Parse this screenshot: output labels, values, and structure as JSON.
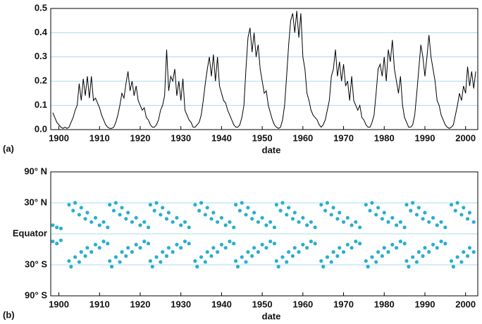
{
  "chart_data": [
    {
      "type": "line",
      "label": "(a)",
      "xlabel": "date",
      "color": "#000000",
      "grid": true,
      "xlim": [
        1898,
        2003
      ],
      "xticks": [
        1900,
        1910,
        1920,
        1930,
        1940,
        1950,
        1960,
        1970,
        1980,
        1990,
        2000
      ],
      "ylim": [
        0,
        0.5
      ],
      "yticks": [
        {
          "value": 0,
          "label": "0.0"
        },
        0.1,
        0.2,
        0.3,
        0.4,
        0.5
      ],
      "x": [
        1898.5,
        1899,
        1899.5,
        1900,
        1900.5,
        1901,
        1901.5,
        1902,
        1902.5,
        1903,
        1903.5,
        1904,
        1904.5,
        1905,
        1905.5,
        1906,
        1906.5,
        1907,
        1907.5,
        1908,
        1908.5,
        1909,
        1909.5,
        1910,
        1910.5,
        1911,
        1911.5,
        1912,
        1912.5,
        1913,
        1913.5,
        1914,
        1914.5,
        1915,
        1915.5,
        1916,
        1916.5,
        1917,
        1917.5,
        1918,
        1918.5,
        1919,
        1919.5,
        1920,
        1920.5,
        1921,
        1921.5,
        1922,
        1922.5,
        1923,
        1923.5,
        1924,
        1924.5,
        1925,
        1925.5,
        1926,
        1926.5,
        1927,
        1927.5,
        1928,
        1928.5,
        1929,
        1929.5,
        1930,
        1930.5,
        1931,
        1931.5,
        1932,
        1932.5,
        1933,
        1933.5,
        1934,
        1934.5,
        1935,
        1935.5,
        1936,
        1936.5,
        1937,
        1937.5,
        1938,
        1938.5,
        1939,
        1939.5,
        1940,
        1940.5,
        1941,
        1941.5,
        1942,
        1942.5,
        1943,
        1943.5,
        1944,
        1944.5,
        1945,
        1945.5,
        1946,
        1946.5,
        1947,
        1947.5,
        1948,
        1948.5,
        1949,
        1949.5,
        1950,
        1950.5,
        1951,
        1951.5,
        1952,
        1952.5,
        1953,
        1953.5,
        1954,
        1954.5,
        1955,
        1955.5,
        1956,
        1956.5,
        1957,
        1957.5,
        1958,
        1958.5,
        1959,
        1959.5,
        1960,
        1960.5,
        1961,
        1961.5,
        1962,
        1962.5,
        1963,
        1963.5,
        1964,
        1964.5,
        1965,
        1965.5,
        1966,
        1966.5,
        1967,
        1967.5,
        1968,
        1968.5,
        1969,
        1969.5,
        1970,
        1970.5,
        1971,
        1971.5,
        1972,
        1972.5,
        1973,
        1973.5,
        1974,
        1974.5,
        1975,
        1975.5,
        1976,
        1976.5,
        1977,
        1977.5,
        1978,
        1978.5,
        1979,
        1979.5,
        1980,
        1980.5,
        1981,
        1981.5,
        1982,
        1982.5,
        1983,
        1983.5,
        1984,
        1984.5,
        1985,
        1985.5,
        1986,
        1986.5,
        1987,
        1987.5,
        1988,
        1988.5,
        1989,
        1989.5,
        1990,
        1990.5,
        1991,
        1991.5,
        1992,
        1992.5,
        1993,
        1993.5,
        1994,
        1994.5,
        1995,
        1995.5,
        1996,
        1996.5,
        1997,
        1997.5,
        1998,
        1998.5,
        1999,
        1999.5,
        2000,
        2000.5,
        2001,
        2001.5,
        2002,
        2002.5
      ],
      "values": [
        0.07,
        0.05,
        0.03,
        0.02,
        0.01,
        0.005,
        0.01,
        0.005,
        0.01,
        0.03,
        0.05,
        0.08,
        0.1,
        0.19,
        0.12,
        0.21,
        0.14,
        0.22,
        0.13,
        0.22,
        0.12,
        0.13,
        0.11,
        0.09,
        0.06,
        0.04,
        0.02,
        0.01,
        0.005,
        0.005,
        0.01,
        0.03,
        0.06,
        0.1,
        0.15,
        0.13,
        0.19,
        0.24,
        0.16,
        0.2,
        0.14,
        0.18,
        0.12,
        0.1,
        0.08,
        0.09,
        0.05,
        0.04,
        0.02,
        0.01,
        0.01,
        0.02,
        0.04,
        0.08,
        0.1,
        0.14,
        0.33,
        0.16,
        0.22,
        0.2,
        0.25,
        0.14,
        0.2,
        0.12,
        0.21,
        0.08,
        0.06,
        0.04,
        0.03,
        0.01,
        0.01,
        0.02,
        0.03,
        0.06,
        0.12,
        0.19,
        0.25,
        0.3,
        0.22,
        0.31,
        0.2,
        0.3,
        0.18,
        0.15,
        0.12,
        0.11,
        0.08,
        0.06,
        0.04,
        0.02,
        0.01,
        0.01,
        0.02,
        0.05,
        0.1,
        0.25,
        0.38,
        0.42,
        0.32,
        0.4,
        0.3,
        0.35,
        0.25,
        0.2,
        0.15,
        0.16,
        0.1,
        0.07,
        0.04,
        0.02,
        0.01,
        0.005,
        0.01,
        0.04,
        0.1,
        0.22,
        0.35,
        0.45,
        0.48,
        0.4,
        0.49,
        0.38,
        0.48,
        0.3,
        0.25,
        0.15,
        0.12,
        0.08,
        0.06,
        0.05,
        0.04,
        0.02,
        0.01,
        0.02,
        0.04,
        0.08,
        0.12,
        0.22,
        0.25,
        0.33,
        0.22,
        0.28,
        0.2,
        0.27,
        0.18,
        0.2,
        0.12,
        0.22,
        0.12,
        0.1,
        0.08,
        0.1,
        0.05,
        0.04,
        0.02,
        0.01,
        0.01,
        0.03,
        0.06,
        0.15,
        0.25,
        0.27,
        0.22,
        0.3,
        0.2,
        0.33,
        0.28,
        0.37,
        0.25,
        0.2,
        0.15,
        0.22,
        0.1,
        0.05,
        0.03,
        0.01,
        0.01,
        0.02,
        0.06,
        0.15,
        0.25,
        0.35,
        0.3,
        0.22,
        0.3,
        0.39,
        0.3,
        0.25,
        0.2,
        0.12,
        0.1,
        0.06,
        0.04,
        0.02,
        0.01,
        0.005,
        0.01,
        0.02,
        0.06,
        0.1,
        0.15,
        0.12,
        0.18,
        0.15,
        0.26,
        0.18,
        0.24,
        0.17,
        0.24
      ]
    },
    {
      "type": "scatter",
      "label": "(b)",
      "xlabel": "date",
      "color": "#29aecf",
      "grid": true,
      "yscale": "sine",
      "xlim": [
        1898,
        2003
      ],
      "xticks": [
        1900,
        1910,
        1920,
        1930,
        1940,
        1950,
        1960,
        1970,
        1980,
        1990,
        2000
      ],
      "ylim": [
        -90,
        90
      ],
      "yticks": [
        {
          "value": 90,
          "label": "90° N"
        },
        {
          "value": 30,
          "label": "30° N"
        },
        {
          "value": 0,
          "label": "Equator"
        },
        {
          "value": -30,
          "label": "30° S"
        },
        {
          "value": -90,
          "label": "90° S"
        }
      ],
      "x": [
        1898.5,
        1899.5,
        1900.5,
        1898.5,
        1899.5,
        1900.5,
        1902.5,
        1903.5,
        1904,
        1905,
        1905.5,
        1906.5,
        1907,
        1908,
        1909,
        1910,
        1911,
        1912,
        1902.5,
        1903,
        1904,
        1905,
        1905.5,
        1906.5,
        1907,
        1908,
        1909,
        1910,
        1911,
        1912,
        1912.5,
        1913.5,
        1914,
        1915,
        1915.5,
        1916.5,
        1917,
        1918,
        1919,
        1920,
        1921,
        1922,
        1912.5,
        1913,
        1914,
        1915,
        1915.5,
        1916.5,
        1917,
        1918,
        1919,
        1920,
        1921,
        1922,
        1922.5,
        1923.5,
        1924,
        1925,
        1925.5,
        1926.5,
        1927,
        1928,
        1929,
        1930,
        1931,
        1932,
        1922.5,
        1923,
        1924,
        1925,
        1925.5,
        1926.5,
        1927,
        1928,
        1929,
        1930,
        1931,
        1932,
        1933.5,
        1934.5,
        1935,
        1936,
        1936.5,
        1937.5,
        1938,
        1939,
        1940,
        1941,
        1942,
        1943,
        1933.5,
        1934,
        1935,
        1936,
        1936.5,
        1937.5,
        1938,
        1939,
        1940,
        1941,
        1942,
        1943,
        1943.5,
        1944.5,
        1945,
        1946,
        1946.5,
        1947.5,
        1948,
        1949,
        1950,
        1951,
        1952,
        1953,
        1943.5,
        1944,
        1945,
        1946,
        1946.5,
        1947.5,
        1948,
        1949,
        1950,
        1951,
        1952,
        1953,
        1953.5,
        1954.5,
        1955,
        1956,
        1956.5,
        1957.5,
        1958,
        1959,
        1960,
        1961,
        1962,
        1963,
        1953.5,
        1954,
        1955,
        1956,
        1956.5,
        1957.5,
        1958,
        1959,
        1960,
        1961,
        1962,
        1963,
        1964.5,
        1965.5,
        1966,
        1967,
        1967.5,
        1968.5,
        1969,
        1970,
        1971,
        1972,
        1973,
        1974,
        1964.5,
        1965,
        1966,
        1967,
        1967.5,
        1968.5,
        1969,
        1970,
        1971,
        1972,
        1973,
        1974,
        1975.5,
        1976.5,
        1977,
        1978,
        1978.5,
        1979.5,
        1980,
        1981,
        1982,
        1983,
        1984,
        1985,
        1975.5,
        1976,
        1977,
        1978,
        1978.5,
        1979.5,
        1980,
        1981,
        1982,
        1983,
        1984,
        1985,
        1985.5,
        1986.5,
        1987,
        1988,
        1988.5,
        1989.5,
        1990,
        1991,
        1992,
        1993,
        1994,
        1995,
        1985.5,
        1986,
        1987,
        1988,
        1988.5,
        1989.5,
        1990,
        1991,
        1992,
        1993,
        1994,
        1995,
        1996.5,
        1997.5,
        1998,
        1999,
        1999.5,
        2000.5,
        2001,
        2002,
        1996.5,
        1997,
        1998,
        1999,
        1999.5,
        2000.5,
        2001,
        2002
      ],
      "values": [
        8,
        6,
        5,
        -7,
        -9,
        -6,
        28,
        22,
        30,
        18,
        25,
        14,
        20,
        11,
        15,
        8,
        11,
        6,
        -26,
        -32,
        -22,
        -27,
        -17,
        -21,
        -13,
        -17,
        -10,
        -13,
        -7,
        -9,
        28,
        22,
        30,
        18,
        25,
        14,
        20,
        11,
        15,
        8,
        11,
        6,
        -26,
        -32,
        -22,
        -27,
        -17,
        -21,
        -13,
        -17,
        -10,
        -13,
        -7,
        -9,
        28,
        22,
        30,
        18,
        25,
        14,
        20,
        11,
        15,
        8,
        11,
        6,
        -26,
        -32,
        -22,
        -27,
        -17,
        -21,
        -13,
        -17,
        -10,
        -13,
        -7,
        -9,
        28,
        22,
        30,
        18,
        25,
        14,
        20,
        11,
        15,
        8,
        11,
        6,
        -26,
        -32,
        -22,
        -27,
        -17,
        -21,
        -13,
        -17,
        -10,
        -13,
        -7,
        -9,
        28,
        22,
        30,
        18,
        25,
        14,
        20,
        11,
        15,
        8,
        11,
        6,
        -26,
        -32,
        -22,
        -27,
        -17,
        -21,
        -13,
        -17,
        -10,
        -13,
        -7,
        -9,
        28,
        22,
        30,
        18,
        25,
        14,
        20,
        11,
        15,
        8,
        11,
        6,
        -26,
        -32,
        -22,
        -27,
        -17,
        -21,
        -13,
        -17,
        -10,
        -13,
        -7,
        -9,
        28,
        22,
        30,
        18,
        25,
        14,
        20,
        11,
        15,
        8,
        11,
        6,
        -26,
        -32,
        -22,
        -27,
        -17,
        -21,
        -13,
        -17,
        -10,
        -13,
        -7,
        -9,
        28,
        22,
        30,
        18,
        25,
        14,
        20,
        11,
        15,
        8,
        11,
        6,
        -26,
        -32,
        -22,
        -27,
        -17,
        -21,
        -13,
        -17,
        -10,
        -13,
        -7,
        -9,
        28,
        22,
        30,
        18,
        25,
        14,
        20,
        11,
        15,
        8,
        11,
        6,
        -26,
        -32,
        -22,
        -27,
        -17,
        -21,
        -13,
        -17,
        -10,
        -13,
        -7,
        -9,
        28,
        22,
        30,
        18,
        25,
        14,
        20,
        11,
        -26,
        -32,
        -22,
        -27,
        -17,
        -21,
        -13,
        -17
      ]
    }
  ]
}
